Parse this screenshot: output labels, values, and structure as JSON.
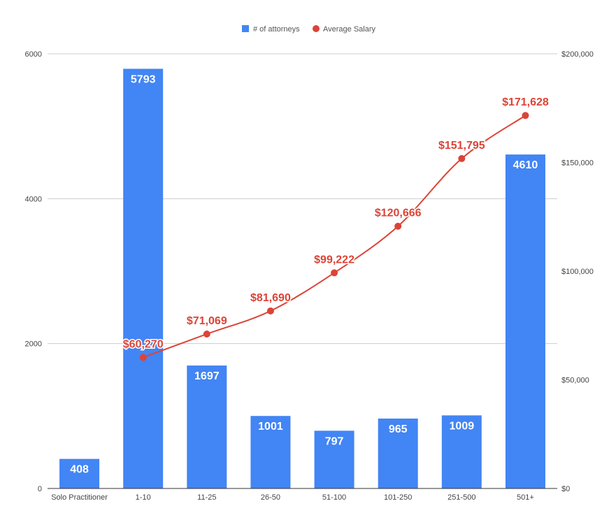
{
  "chart_data": {
    "type": "bar",
    "categories": [
      "Solo Practitioner",
      "1-10",
      "11-25",
      "26-50",
      "51-100",
      "101-250",
      "251-500",
      "501+"
    ],
    "series": [
      {
        "name": "# of attorneys",
        "type": "bar",
        "axis": "left",
        "color": "#4285F4",
        "values": [
          408,
          5793,
          1697,
          1001,
          797,
          965,
          1009,
          4610
        ],
        "labels": [
          "408",
          "5793",
          "1697",
          "1001",
          "797",
          "965",
          "1009",
          "4610"
        ]
      },
      {
        "name": "Average Salary",
        "type": "line",
        "axis": "right",
        "color": "#DB4437",
        "values": [
          null,
          60270,
          71069,
          81690,
          99222,
          120666,
          151795,
          171628
        ],
        "labels": [
          "",
          "$60,270",
          "$71,069",
          "$81,690",
          "$99,222",
          "$120,666",
          "$151,795",
          "$171,628"
        ]
      }
    ],
    "y_left": {
      "ylim": [
        0,
        6000
      ],
      "ticks": [
        0,
        2000,
        4000,
        6000
      ],
      "tick_labels": [
        "0",
        "2000",
        "4000",
        "6000"
      ]
    },
    "y_right": {
      "ylim": [
        0,
        200000
      ],
      "ticks": [
        0,
        50000,
        100000,
        150000,
        200000
      ],
      "tick_labels": [
        "$0",
        "$50,000",
        "$100,000",
        "$150,000",
        "$200,000"
      ]
    },
    "grid": true,
    "legend": "top-center"
  }
}
